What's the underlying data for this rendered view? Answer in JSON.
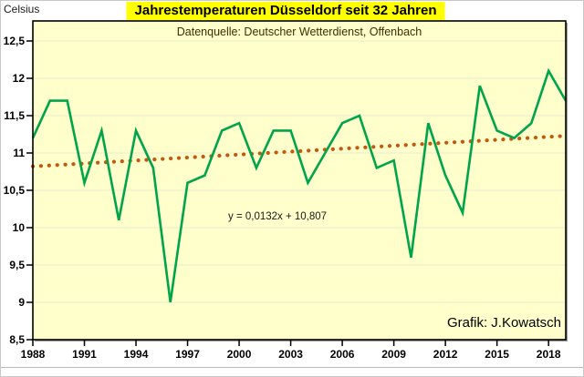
{
  "page": {
    "unit_label": "Celsius",
    "title": "Jahrestemperaturen Düsseldorf seit 32 Jahren",
    "subtitle": "Datenquelle: Deutscher Wetterdienst, Offenbach",
    "trend_equation": "y = 0,0132x + 10,807",
    "credit": "Grafik: J.Kowatsch"
  },
  "colors": {
    "title_highlight": "#ffff00",
    "title_text": "#000000",
    "subtitle_text": "#3c2f00",
    "plot_background": "#ffffcc",
    "plot_border": "#000000",
    "plot_shadow": "#9c9c9c",
    "gridline": "#e6ebcf",
    "series_line": "#00a44a",
    "trend_dots": "#c5580f",
    "axis": "#000000"
  },
  "chart_data": {
    "type": "line",
    "title": "Jahrestemperaturen Düsseldorf seit 32 Jahren",
    "subtitle": "Datenquelle: Deutscher Wetterdienst, Offenbach",
    "ylabel": "Celsius",
    "x": [
      1988,
      1989,
      1990,
      1991,
      1992,
      1993,
      1994,
      1995,
      1996,
      1997,
      1998,
      1999,
      2000,
      2001,
      2002,
      2003,
      2004,
      2005,
      2006,
      2007,
      2008,
      2009,
      2010,
      2011,
      2012,
      2013,
      2014,
      2015,
      2016,
      2017,
      2018,
      2019
    ],
    "series": [
      {
        "name": "Jahrestemperatur Düsseldorf (°C)",
        "values": [
          11.2,
          11.7,
          11.7,
          10.6,
          11.3,
          10.1,
          11.3,
          10.8,
          9.0,
          10.6,
          10.7,
          11.3,
          11.4,
          10.8,
          11.3,
          11.3,
          10.6,
          11.0,
          11.4,
          11.5,
          10.8,
          10.9,
          9.6,
          11.4,
          10.7,
          10.2,
          11.9,
          11.3,
          11.2,
          11.4,
          12.1,
          11.7
        ]
      }
    ],
    "trend": {
      "equation": "y = 0,0132x + 10,807",
      "slope": 0.0132,
      "intercept": 10.807
    },
    "ylim": [
      8.5,
      12.77
    ],
    "yticks": [
      12.5,
      12,
      11.5,
      11,
      10.5,
      10,
      9.5,
      9,
      8.5
    ],
    "ytick_labels": [
      "12,5",
      "12",
      "11,5",
      "11",
      "10,5",
      "10",
      "9,5",
      "9",
      "8,5"
    ],
    "xticks": [
      1988,
      1991,
      1994,
      1997,
      2000,
      2003,
      2006,
      2009,
      2012,
      2015,
      2018
    ],
    "grid": true,
    "legend_position": "none"
  }
}
